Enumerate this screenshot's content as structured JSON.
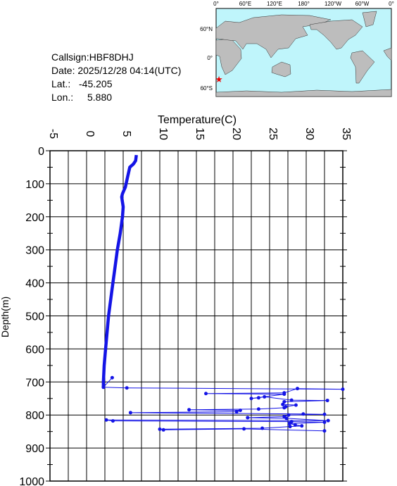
{
  "chart_data": {
    "type": "line",
    "x_label": "Temperature(C)",
    "y_label": "Depth(m)",
    "xlim": [
      -5,
      35
    ],
    "xticks": [
      -5,
      0,
      5,
      10,
      15,
      20,
      25,
      30,
      35
    ],
    "ylim": [
      0,
      1000
    ],
    "yticks": [
      0,
      100,
      200,
      300,
      400,
      500,
      600,
      700,
      800,
      900,
      1000
    ],
    "y_inverted": true,
    "grid": true,
    "series": [
      {
        "color": "#1414e6",
        "style": "thick",
        "x": [
          6.8,
          6.7,
          6.4,
          5.9,
          5.6,
          5.3,
          4.9,
          4.8,
          5.0,
          4.9,
          4.6,
          4.2,
          3.9,
          3.6,
          3.3,
          3.0,
          2.8,
          2.6,
          2.4,
          2.3,
          2.3
        ],
        "values": [
          13,
          30,
          40,
          50,
          80,
          110,
          130,
          140,
          170,
          200,
          250,
          300,
          350,
          400,
          450,
          500,
          550,
          600,
          650,
          700,
          715
        ]
      },
      {
        "color": "#1414e6",
        "style": "thin",
        "x": [
          3.5,
          2.3,
          5.5,
          35,
          28.8,
          27,
          16.3,
          27,
          22.5,
          23.5,
          24.3,
          28,
          32.9,
          27,
          26.8,
          28.6,
          27.2,
          27,
          23.5,
          14,
          21,
          20.5,
          6,
          29.6,
          32.5,
          27.6,
          27,
          22,
          27.3,
          33,
          2.7,
          3.6,
          28,
          32.5,
          27.7,
          28.5,
          29.4,
          27.8,
          24,
          10,
          10.5,
          21.5,
          32.5
        ],
        "values": [
          687,
          716,
          718,
          722,
          720,
          733,
          735,
          737,
          750,
          748,
          745,
          755,
          756,
          760,
          768,
          770,
          775,
          778,
          782,
          784,
          786,
          790,
          793,
          797,
          798,
          800,
          805,
          808,
          810,
          817,
          815,
          818,
          820,
          822,
          826,
          830,
          833,
          835,
          840,
          843,
          845,
          842,
          848
        ]
      }
    ]
  },
  "station": [
    {
      "label": "Callsign:HBF8DHJ"
    },
    {
      "label": "Date:  2025/12/28 04:14(UTC)"
    },
    {
      "label": "Lat.:",
      "value": -45.205
    },
    {
      "label": "Lon.:",
      "value": 5.88,
      "value_label": "5.880"
    }
  ],
  "map": {
    "lon_labels": [
      "0°",
      "60°E",
      "120°E",
      "180°",
      "120°W",
      "60°W",
      "0°"
    ],
    "lat_labels": [
      "60°N",
      "0°",
      "60°S"
    ]
  }
}
